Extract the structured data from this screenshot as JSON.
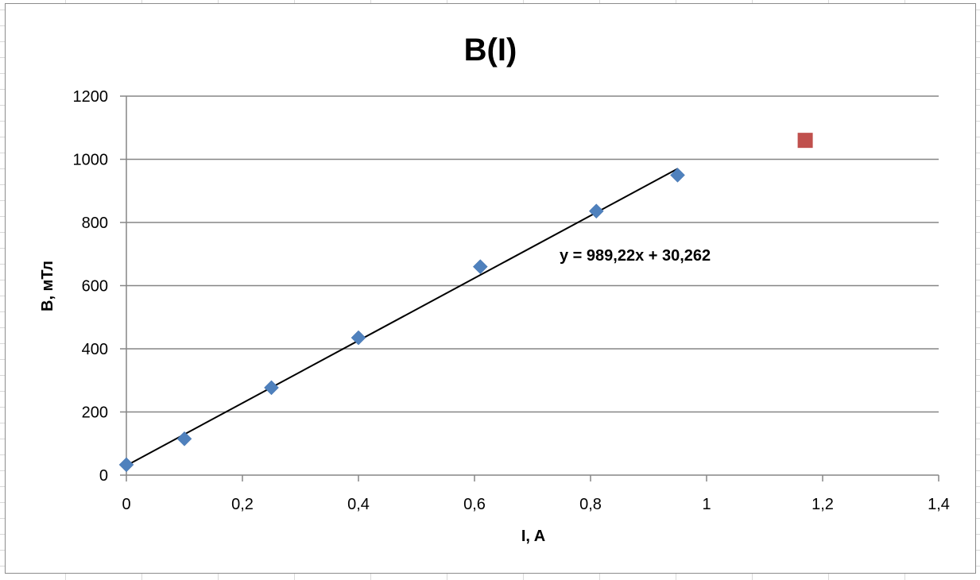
{
  "chart_data": {
    "type": "scatter",
    "title": "B(I)",
    "xlabel": "I, A",
    "ylabel": "B, мТл",
    "xlim": [
      0,
      1.4
    ],
    "ylim": [
      0,
      1200
    ],
    "x_ticks": [
      "0",
      "0,2",
      "0,4",
      "0,6",
      "0,8",
      "1",
      "1,2",
      "1,4"
    ],
    "y_ticks": [
      "0",
      "200",
      "400",
      "600",
      "800",
      "1000",
      "1200"
    ],
    "grid": "horizontal",
    "series": [
      {
        "marker": "diamond",
        "color": "#4f81bd",
        "x": [
          0,
          0.1,
          0.25,
          0.4,
          0.61,
          0.81,
          0.95
        ],
        "y": [
          33,
          115,
          277,
          435,
          660,
          836,
          950
        ]
      },
      {
        "marker": "square",
        "color": "#c0504d",
        "x": [
          1.17
        ],
        "y": [
          1060
        ]
      }
    ],
    "trendline": {
      "slope": 989.22,
      "intercept": 30.262,
      "x_range": [
        0,
        0.95
      ],
      "color": "#000000",
      "label": "y = 989,22x + 30,262"
    }
  }
}
